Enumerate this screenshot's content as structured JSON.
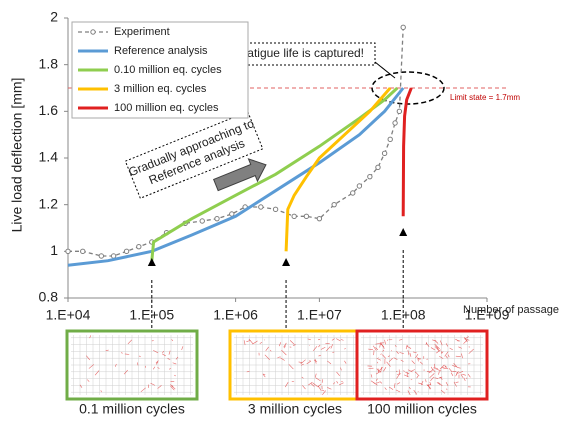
{
  "chart_data": {
    "type": "line",
    "xscale": "log",
    "xlabel": "Number of passage",
    "ylabel": "Live load deflection [mm]",
    "xlim": [
      10000,
      1000000000
    ],
    "ylim": [
      0.8,
      2
    ],
    "xticks": [
      {
        "value": 10000,
        "label": "1.E+04"
      },
      {
        "value": 100000,
        "label": "1.E+05"
      },
      {
        "value": 1000000,
        "label": "1.E+06"
      },
      {
        "value": 10000000,
        "label": "1.E+07"
      },
      {
        "value": 100000000,
        "label": "1.E+08"
      },
      {
        "value": 1000000000,
        "label": "1.E+09"
      }
    ],
    "yticks": [
      0.8,
      1,
      1.2,
      1.4,
      1.6,
      1.8,
      2
    ],
    "legend": "upper left",
    "series": [
      {
        "name": "Experiment",
        "color": "#7f7f7f",
        "style": "dashed-marker",
        "x": [
          10000,
          15000,
          25000,
          35000,
          50000,
          70000,
          100000,
          150000,
          250000,
          400000,
          600000,
          900000,
          1300000,
          2000000,
          3000000,
          5000000,
          7000000,
          10000000,
          15000000,
          25000000,
          30000000,
          40000000,
          50000000,
          60000000,
          70000000,
          80000000,
          90000000,
          100000000
        ],
        "values": [
          1.0,
          1.0,
          0.98,
          0.98,
          1.0,
          1.02,
          1.04,
          1.08,
          1.12,
          1.13,
          1.14,
          1.16,
          1.19,
          1.19,
          1.18,
          1.15,
          1.15,
          1.14,
          1.2,
          1.25,
          1.28,
          1.32,
          1.36,
          1.42,
          1.48,
          1.55,
          1.6,
          1.96
        ]
      },
      {
        "name": "Reference analysis",
        "color": "#5b9bd5",
        "x": [
          10000,
          30000,
          100000,
          300000,
          1000000,
          3000000,
          10000000,
          30000000,
          60000000,
          100000000
        ],
        "values": [
          0.94,
          0.96,
          1.0,
          1.07,
          1.15,
          1.26,
          1.38,
          1.5,
          1.6,
          1.7
        ]
      },
      {
        "name": "0.10 million eq. cycles",
        "color": "#8fce4f",
        "x": [
          100000,
          105000,
          300000,
          1000000,
          3000000,
          10000000,
          30000000,
          60000000,
          85000000
        ],
        "values": [
          0.96,
          1.04,
          1.14,
          1.24,
          1.33,
          1.45,
          1.57,
          1.65,
          1.7
        ]
      },
      {
        "name": "3 million eq. cycles",
        "color": "#ffc000",
        "x": [
          4000000,
          4200000,
          5000000,
          7000000,
          10000000,
          20000000,
          40000000,
          70000000
        ],
        "values": [
          1.0,
          1.18,
          1.24,
          1.32,
          1.4,
          1.5,
          1.6,
          1.7
        ]
      },
      {
        "name": "100 million eq. cycles",
        "color": "#e02020",
        "x": [
          100000000,
          101000000,
          104000000,
          110000000,
          125000000
        ],
        "values": [
          1.15,
          1.45,
          1.58,
          1.65,
          1.7
        ]
      }
    ],
    "limit_line": {
      "value": 1.7,
      "label": "Limit state = 1.7mm",
      "color": "#e06060"
    },
    "annotations": {
      "captured": "Fatigue life is captured!",
      "approaching": [
        "Gradually approaching to",
        "Reference analysis"
      ]
    },
    "panels": [
      {
        "caption": "0.1 million cycles",
        "x": 100000,
        "color": "#70ad47"
      },
      {
        "caption": "3 million cycles",
        "x": 4000000,
        "color": "#ffc000"
      },
      {
        "caption": "100 million cycles",
        "x": 100000000,
        "color": "#e02020"
      }
    ]
  }
}
